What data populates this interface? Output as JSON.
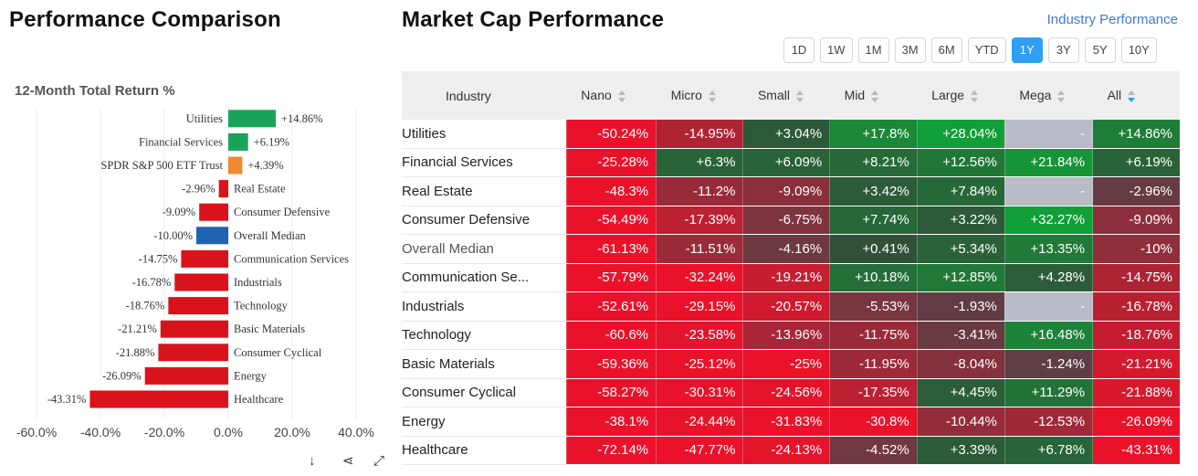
{
  "left": {
    "title": "Performance Comparison",
    "chart_title": "12-Month Total Return %",
    "tools": {
      "download": "↓",
      "share": "⋖",
      "expand": "⤢"
    }
  },
  "chart_data": [
    {
      "type": "bar",
      "orientation": "horizontal",
      "title": "12-Month Total Return %",
      "categories": [
        "Utilities",
        "Financial Services",
        "SPDR S&P 500 ETF Trust",
        "Real Estate",
        "Consumer Defensive",
        "Overall Median",
        "Communication Services",
        "Industrials",
        "Technology",
        "Basic Materials",
        "Consumer Cyclical",
        "Energy",
        "Healthcare"
      ],
      "values": [
        14.86,
        6.19,
        4.39,
        -2.96,
        -9.09,
        -10.0,
        -14.75,
        -16.78,
        -18.76,
        -21.21,
        -21.88,
        -26.09,
        -43.31
      ],
      "value_labels": [
        "+14.86%",
        "+6.19%",
        "+4.39%",
        "-2.96%",
        "-9.09%",
        "-10.00%",
        "-14.75%",
        "-16.78%",
        "-18.76%",
        "-21.21%",
        "-21.88%",
        "-26.09%",
        "-43.31%"
      ],
      "colors": [
        "#1aa35a",
        "#1aa35a",
        "#f0892d",
        "#d9131b",
        "#d9131b",
        "#1e63b0",
        "#d9131b",
        "#d9131b",
        "#d9131b",
        "#d9131b",
        "#d9131b",
        "#d9131b",
        "#d9131b"
      ],
      "xlim": [
        -60,
        40
      ],
      "xticks": [
        -60,
        -40,
        -20,
        0,
        20,
        40
      ],
      "xtick_labels": [
        "-60.0%",
        "-40.0%",
        "-20.0%",
        "0.0%",
        "20.0%",
        "40.0%"
      ],
      "grid": true
    },
    {
      "type": "heatmap",
      "title": "Market Cap Performance",
      "columns": [
        "Industry",
        "Nano",
        "Micro",
        "Small",
        "Mid",
        "Large",
        "Mega",
        "All"
      ],
      "rows": [
        {
          "name": "Utilities",
          "values": [
            -50.24,
            -14.95,
            3.04,
            17.8,
            28.04,
            null,
            14.86
          ],
          "labels": [
            "-50.24%",
            "-14.95%",
            "+3.04%",
            "+17.8%",
            "+28.04%",
            "-",
            "+14.86%"
          ]
        },
        {
          "name": "Financial Services",
          "values": [
            -25.28,
            6.3,
            6.09,
            8.21,
            12.56,
            21.84,
            6.19
          ],
          "labels": [
            "-25.28%",
            "+6.3%",
            "+6.09%",
            "+8.21%",
            "+12.56%",
            "+21.84%",
            "+6.19%"
          ]
        },
        {
          "name": "Real Estate",
          "values": [
            -48.3,
            -11.2,
            -9.09,
            3.42,
            7.84,
            null,
            -2.96
          ],
          "labels": [
            "-48.3%",
            "-11.2%",
            "-9.09%",
            "+3.42%",
            "+7.84%",
            "-",
            "-2.96%"
          ]
        },
        {
          "name": "Consumer Defensive",
          "values": [
            -54.49,
            -17.39,
            -6.75,
            7.74,
            3.22,
            32.27,
            -9.09
          ],
          "labels": [
            "-54.49%",
            "-17.39%",
            "-6.75%",
            "+7.74%",
            "+3.22%",
            "+32.27%",
            "-9.09%"
          ]
        },
        {
          "name": "Overall Median",
          "values": [
            -61.13,
            -11.51,
            -4.16,
            0.41,
            5.34,
            13.35,
            -10
          ],
          "labels": [
            "-61.13%",
            "-11.51%",
            "-4.16%",
            "+0.41%",
            "+5.34%",
            "+13.35%",
            "-10%"
          ]
        },
        {
          "name": "Communication Se...",
          "values": [
            -57.79,
            -32.24,
            -19.21,
            10.18,
            12.85,
            4.28,
            -14.75
          ],
          "labels": [
            "-57.79%",
            "-32.24%",
            "-19.21%",
            "+10.18%",
            "+12.85%",
            "+4.28%",
            "-14.75%"
          ]
        },
        {
          "name": "Industrials",
          "values": [
            -52.61,
            -29.15,
            -20.57,
            -5.53,
            -1.93,
            null,
            -16.78
          ],
          "labels": [
            "-52.61%",
            "-29.15%",
            "-20.57%",
            "-5.53%",
            "-1.93%",
            "-",
            "-16.78%"
          ]
        },
        {
          "name": "Technology",
          "values": [
            -60.6,
            -23.58,
            -13.96,
            -11.75,
            -3.41,
            16.48,
            -18.76
          ],
          "labels": [
            "-60.6%",
            "-23.58%",
            "-13.96%",
            "-11.75%",
            "-3.41%",
            "+16.48%",
            "-18.76%"
          ]
        },
        {
          "name": "Basic Materials",
          "values": [
            -59.36,
            -25.12,
            -25,
            -11.95,
            -8.04,
            -1.24,
            -21.21
          ],
          "labels": [
            "-59.36%",
            "-25.12%",
            "-25%",
            "-11.95%",
            "-8.04%",
            "-1.24%",
            "-21.21%"
          ]
        },
        {
          "name": "Consumer Cyclical",
          "values": [
            -58.27,
            -30.31,
            -24.56,
            -17.35,
            4.45,
            11.29,
            -21.88
          ],
          "labels": [
            "-58.27%",
            "-30.31%",
            "-24.56%",
            "-17.35%",
            "+4.45%",
            "+11.29%",
            "-21.88%"
          ]
        },
        {
          "name": "Energy",
          "values": [
            -38.1,
            -24.44,
            -31.83,
            -30.8,
            -10.44,
            -12.53,
            -26.09
          ],
          "labels": [
            "-38.1%",
            "-24.44%",
            "-31.83%",
            "-30.8%",
            "-10.44%",
            "-12.53%",
            "-26.09%"
          ]
        },
        {
          "name": "Healthcare",
          "values": [
            -72.14,
            -47.77,
            -24.13,
            -4.52,
            3.39,
            6.78,
            -43.31
          ],
          "labels": [
            "-72.14%",
            "-47.77%",
            "-24.13%",
            "-4.52%",
            "+3.39%",
            "+6.78%",
            "-43.31%"
          ]
        }
      ]
    }
  ],
  "right": {
    "title": "Market Cap Performance",
    "link": "Industry Performance",
    "periods": [
      "1D",
      "1W",
      "1M",
      "3M",
      "6M",
      "YTD",
      "1Y",
      "3Y",
      "5Y",
      "10Y"
    ],
    "active_period": "1Y",
    "muted_row": "Overall Median",
    "sorted_column": "All",
    "colors": {
      "red": "#e8102a",
      "green": "#139a39",
      "empty": "#b9bcc6"
    }
  }
}
